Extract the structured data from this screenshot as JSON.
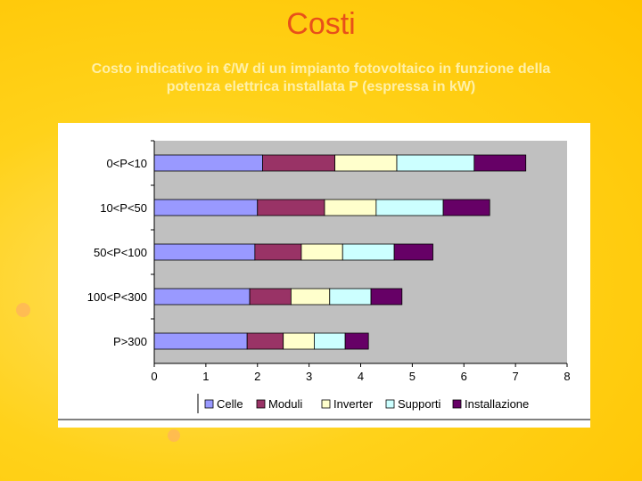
{
  "slide": {
    "title": "Costi",
    "subtitle_line1": "Costo indicativo in €/W di un impianto fotovoltaico in funzione della",
    "subtitle_line2": "potenza elettrica installata P (espressa in kW)"
  },
  "colors": {
    "title": "#e8501a",
    "plot_bg": "#c0c0c0"
  },
  "chart_data": {
    "type": "bar",
    "orientation": "horizontal",
    "stacked": true,
    "categories": [
      "0<P<10",
      "10<P<50",
      "50<P<100",
      "100<P<300",
      "P>300"
    ],
    "series": [
      {
        "name": "Celle",
        "color": "#9999ff",
        "values": [
          2.1,
          2.0,
          1.95,
          1.85,
          1.8
        ]
      },
      {
        "name": "Moduli",
        "color": "#993366",
        "values": [
          1.4,
          1.3,
          0.9,
          0.8,
          0.7
        ]
      },
      {
        "name": "Inverter",
        "color": "#ffffcc",
        "values": [
          1.2,
          1.0,
          0.8,
          0.75,
          0.6
        ]
      },
      {
        "name": "Supporti",
        "color": "#ccffff",
        "values": [
          1.5,
          1.3,
          1.0,
          0.8,
          0.6
        ]
      },
      {
        "name": "Installazione",
        "color": "#660066",
        "values": [
          1.0,
          0.9,
          0.75,
          0.6,
          0.45
        ]
      }
    ],
    "xlim": [
      0,
      8
    ],
    "xticks": [
      "0",
      "1",
      "2",
      "3",
      "4",
      "5",
      "6",
      "7",
      "8"
    ],
    "grid": false,
    "legend_position": "bottom"
  }
}
